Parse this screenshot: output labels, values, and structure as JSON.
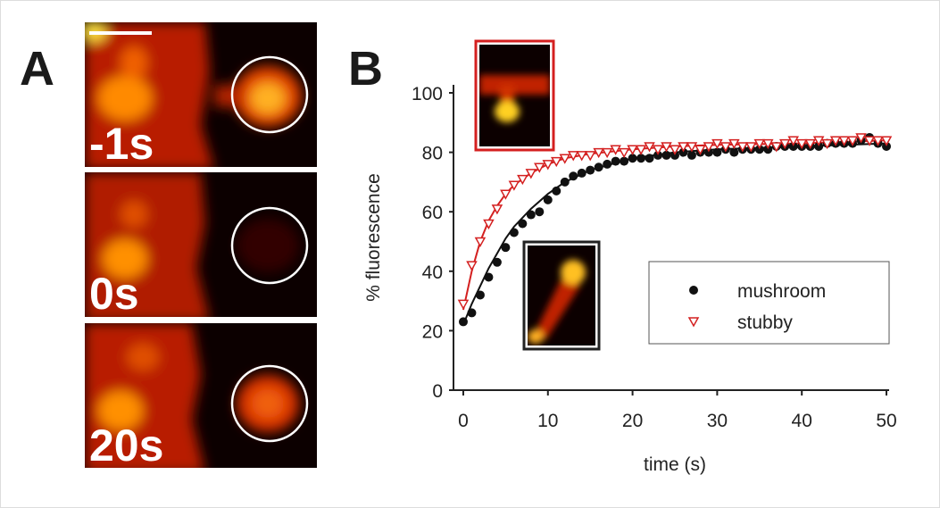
{
  "panel_labels": [
    "A",
    "B"
  ],
  "image_labels": [
    "-1s",
    "0s",
    "20s"
  ],
  "chart_data": {
    "type": "scatter",
    "xlabel": "time (s)",
    "ylabel": "% fluorescence",
    "xlim": [
      -1,
      50
    ],
    "ylim": [
      0,
      100
    ],
    "xticks": [
      0,
      10,
      20,
      30,
      40,
      50
    ],
    "yticks": [
      0,
      20,
      40,
      60,
      80,
      100
    ],
    "x": [
      0,
      1,
      2,
      3,
      4,
      5,
      6,
      7,
      8,
      9,
      10,
      11,
      12,
      13,
      14,
      15,
      16,
      17,
      18,
      19,
      20,
      21,
      22,
      23,
      24,
      25,
      26,
      27,
      28,
      29,
      30,
      31,
      32,
      33,
      34,
      35,
      36,
      37,
      38,
      39,
      40,
      41,
      42,
      43,
      44,
      45,
      46,
      47,
      48,
      49,
      50
    ],
    "series": [
      {
        "name": "mushroom",
        "color": "#111111",
        "marker": "circle",
        "values": [
          23,
          26,
          32,
          38,
          43,
          48,
          53,
          56,
          59,
          60,
          64,
          67,
          70,
          72,
          73,
          74,
          75,
          76,
          77,
          77,
          78,
          78,
          78,
          79,
          79,
          79,
          80,
          79,
          80,
          80,
          80,
          81,
          80,
          81,
          81,
          81,
          81,
          82,
          82,
          82,
          82,
          82,
          82,
          83,
          83,
          83,
          83,
          84,
          85,
          83,
          82
        ]
      },
      {
        "name": "stubby",
        "color": "#d42020",
        "marker": "triangle",
        "values": [
          29,
          42,
          50,
          56,
          61,
          66,
          69,
          71,
          73,
          75,
          76,
          77,
          78,
          79,
          79,
          79,
          80,
          80,
          81,
          80,
          81,
          81,
          82,
          81,
          82,
          81,
          82,
          82,
          81,
          82,
          83,
          82,
          83,
          82,
          82,
          83,
          83,
          82,
          83,
          84,
          83,
          83,
          84,
          83,
          84,
          84,
          84,
          85,
          84,
          84,
          84
        ]
      }
    ],
    "fits": {
      "x": [
        0,
        1,
        2,
        3,
        4,
        5,
        6,
        8,
        10,
        12,
        15,
        20,
        25,
        30,
        40,
        50
      ],
      "series": [
        {
          "color": "#111111",
          "values": [
            22,
            29,
            35,
            41,
            46,
            51,
            55,
            61,
            66,
            70,
            74,
            78,
            80,
            81,
            82,
            83
          ]
        },
        {
          "color": "#d42020",
          "values": [
            27,
            40,
            50,
            57,
            62,
            66,
            69,
            73,
            76,
            78,
            79.5,
            81,
            82,
            82.5,
            83,
            84
          ]
        }
      ]
    },
    "legend": "lower right"
  }
}
